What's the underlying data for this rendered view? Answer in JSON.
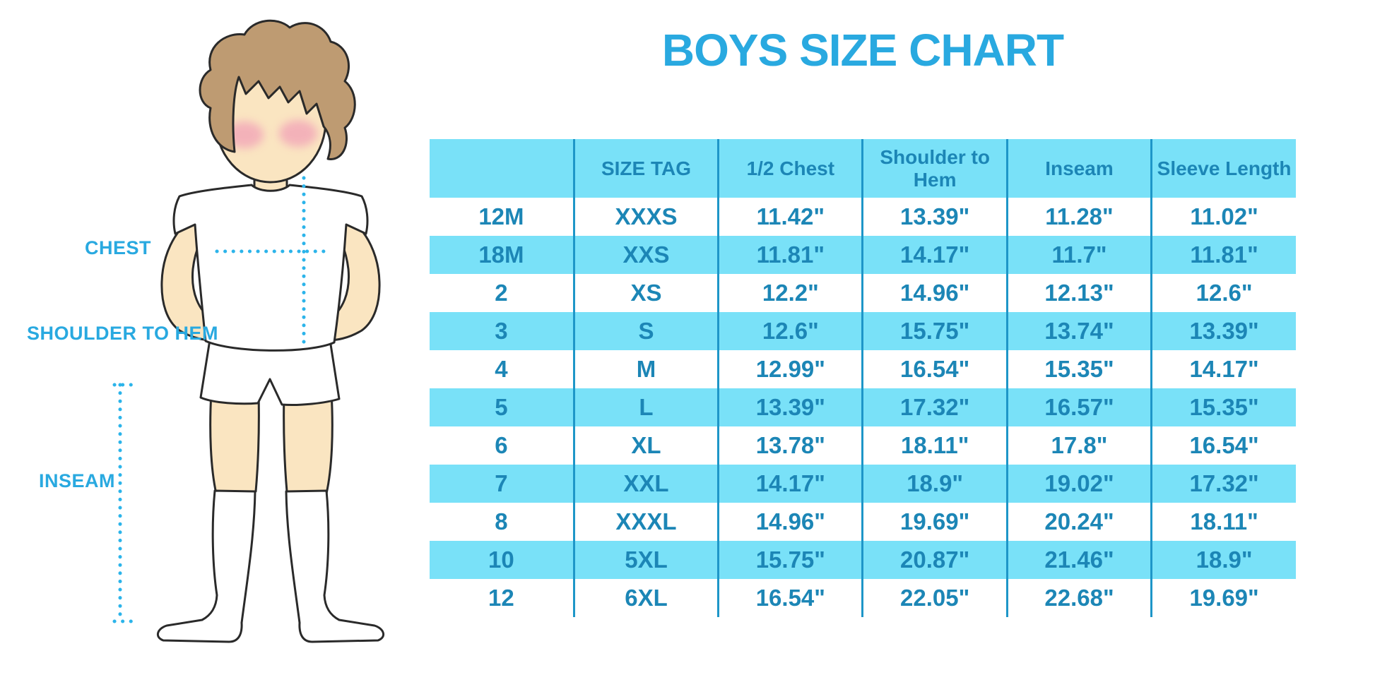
{
  "title": "BOYS SIZE CHART",
  "figure": {
    "labels": {
      "chest": "CHEST",
      "shoulder_to_hem": "SHOULDER TO HEM",
      "inseam": "INSEAM"
    }
  },
  "chart_data": {
    "type": "table",
    "title": "BOYS SIZE CHART",
    "columns": [
      "",
      "SIZE TAG",
      "1/2 Chest",
      "Shoulder to Hem",
      "Inseam",
      "Sleeve Length"
    ],
    "rows": [
      [
        "12M",
        "XXXS",
        "11.42\"",
        "13.39\"",
        "11.28\"",
        "11.02\""
      ],
      [
        "18M",
        "XXS",
        "11.81\"",
        "14.17\"",
        "11.7\"",
        "11.81\""
      ],
      [
        "2",
        "XS",
        "12.2\"",
        "14.96\"",
        "12.13\"",
        "12.6\""
      ],
      [
        "3",
        "S",
        "12.6\"",
        "15.75\"",
        "13.74\"",
        "13.39\""
      ],
      [
        "4",
        "M",
        "12.99\"",
        "16.54\"",
        "15.35\"",
        "14.17\""
      ],
      [
        "5",
        "L",
        "13.39\"",
        "17.32\"",
        "16.57\"",
        "15.35\""
      ],
      [
        "6",
        "XL",
        "13.78\"",
        "18.11\"",
        "17.8\"",
        "16.54\""
      ],
      [
        "7",
        "XXL",
        "14.17\"",
        "18.9\"",
        "19.02\"",
        "17.32\""
      ],
      [
        "8",
        "XXXL",
        "14.96\"",
        "19.69\"",
        "20.24\"",
        "18.11\""
      ],
      [
        "10",
        "5XL",
        "15.75\"",
        "20.87\"",
        "21.46\"",
        "18.9\""
      ],
      [
        "12",
        "6XL",
        "16.54\"",
        "22.05\"",
        "22.68\"",
        "19.69\""
      ]
    ],
    "units": "inches",
    "row_striping": [
      "white",
      "cyan-alternating"
    ],
    "legend_position": "none",
    "grid": "vertical-dividers-only"
  },
  "colors": {
    "accent_blue": "#29a9e0",
    "table_fill_cyan": "#79e1f8",
    "table_text": "#1c86b6",
    "table_divider": "#1e96c8",
    "dotted_measure_line": "#2cb4ea",
    "skin": "#fae5c1",
    "hair": "#be9b72",
    "cheek": "#f2a6b8",
    "outline": "#2a2a2a",
    "background": "#ffffff"
  }
}
